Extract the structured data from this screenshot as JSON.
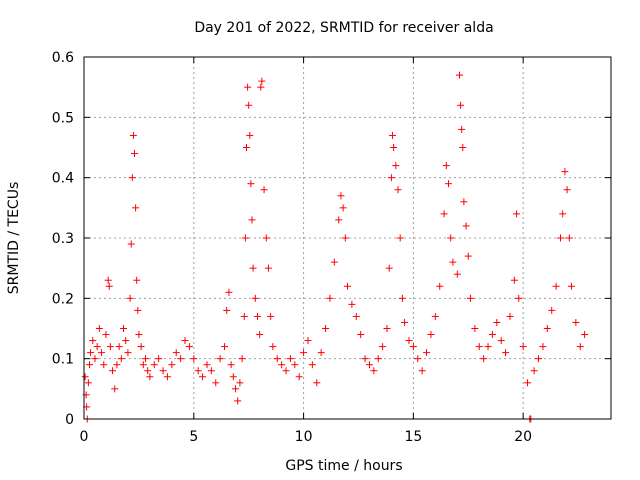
{
  "chart_data": {
    "type": "scatter",
    "title": "Day 201 of 2022, SRMTID for receiver alda",
    "xlabel": "GPS time / hours",
    "ylabel": "SRMTID / TECUs",
    "xlim": [
      0,
      24
    ],
    "ylim": [
      0,
      0.6
    ],
    "x_ticks": [
      0,
      5,
      10,
      15,
      20
    ],
    "x_tick_labels": [
      "0",
      "5",
      "10",
      "15",
      "20"
    ],
    "y_ticks": [
      0,
      0.1,
      0.2,
      0.3,
      0.4,
      0.5,
      0.6
    ],
    "y_tick_labels": [
      "0",
      "0.1",
      "0.2",
      "0.3",
      "0.4",
      "0.5",
      "0.6"
    ],
    "grid": true,
    "marker": "+",
    "color": "#ff0000",
    "series": [
      {
        "name": "SRMTID",
        "points": [
          [
            0.05,
            0.07
          ],
          [
            0.1,
            0.04
          ],
          [
            0.12,
            0.02
          ],
          [
            0.15,
            0.0
          ],
          [
            0.2,
            0.06
          ],
          [
            0.25,
            0.09
          ],
          [
            0.3,
            0.11
          ],
          [
            0.4,
            0.13
          ],
          [
            0.5,
            0.1
          ],
          [
            0.6,
            0.12
          ],
          [
            0.7,
            0.15
          ],
          [
            0.8,
            0.11
          ],
          [
            0.9,
            0.09
          ],
          [
            1.0,
            0.14
          ],
          [
            1.1,
            0.23
          ],
          [
            1.15,
            0.22
          ],
          [
            1.2,
            0.12
          ],
          [
            1.3,
            0.08
          ],
          [
            1.4,
            0.05
          ],
          [
            1.5,
            0.09
          ],
          [
            1.6,
            0.12
          ],
          [
            1.7,
            0.1
          ],
          [
            1.8,
            0.15
          ],
          [
            1.9,
            0.13
          ],
          [
            2.0,
            0.11
          ],
          [
            2.1,
            0.2
          ],
          [
            2.15,
            0.29
          ],
          [
            2.2,
            0.4
          ],
          [
            2.25,
            0.47
          ],
          [
            2.3,
            0.44
          ],
          [
            2.35,
            0.35
          ],
          [
            2.4,
            0.23
          ],
          [
            2.45,
            0.18
          ],
          [
            2.5,
            0.14
          ],
          [
            2.6,
            0.12
          ],
          [
            2.7,
            0.09
          ],
          [
            2.8,
            0.1
          ],
          [
            2.9,
            0.08
          ],
          [
            3.0,
            0.07
          ],
          [
            3.2,
            0.09
          ],
          [
            3.4,
            0.1
          ],
          [
            3.6,
            0.08
          ],
          [
            3.8,
            0.07
          ],
          [
            4.0,
            0.09
          ],
          [
            4.2,
            0.11
          ],
          [
            4.4,
            0.1
          ],
          [
            4.6,
            0.13
          ],
          [
            4.8,
            0.12
          ],
          [
            5.0,
            0.1
          ],
          [
            5.2,
            0.08
          ],
          [
            5.4,
            0.07
          ],
          [
            5.6,
            0.09
          ],
          [
            5.8,
            0.08
          ],
          [
            6.0,
            0.06
          ],
          [
            6.2,
            0.1
          ],
          [
            6.4,
            0.12
          ],
          [
            6.5,
            0.18
          ],
          [
            6.6,
            0.21
          ],
          [
            6.7,
            0.09
          ],
          [
            6.8,
            0.07
          ],
          [
            6.9,
            0.05
          ],
          [
            7.0,
            0.03
          ],
          [
            7.1,
            0.06
          ],
          [
            7.2,
            0.1
          ],
          [
            7.3,
            0.17
          ],
          [
            7.35,
            0.3
          ],
          [
            7.4,
            0.45
          ],
          [
            7.45,
            0.55
          ],
          [
            7.5,
            0.52
          ],
          [
            7.55,
            0.47
          ],
          [
            7.6,
            0.39
          ],
          [
            7.65,
            0.33
          ],
          [
            7.7,
            0.25
          ],
          [
            7.8,
            0.2
          ],
          [
            7.9,
            0.17
          ],
          [
            8.0,
            0.14
          ],
          [
            8.05,
            0.55
          ],
          [
            8.1,
            0.56
          ],
          [
            8.2,
            0.38
          ],
          [
            8.3,
            0.3
          ],
          [
            8.4,
            0.25
          ],
          [
            8.5,
            0.17
          ],
          [
            8.6,
            0.12
          ],
          [
            8.8,
            0.1
          ],
          [
            9.0,
            0.09
          ],
          [
            9.2,
            0.08
          ],
          [
            9.4,
            0.1
          ],
          [
            9.6,
            0.09
          ],
          [
            9.8,
            0.07
          ],
          [
            10.0,
            0.11
          ],
          [
            10.2,
            0.13
          ],
          [
            10.4,
            0.09
          ],
          [
            10.6,
            0.06
          ],
          [
            10.8,
            0.11
          ],
          [
            11.0,
            0.15
          ],
          [
            11.2,
            0.2
          ],
          [
            11.4,
            0.26
          ],
          [
            11.6,
            0.33
          ],
          [
            11.7,
            0.37
          ],
          [
            11.8,
            0.35
          ],
          [
            11.9,
            0.3
          ],
          [
            12.0,
            0.22
          ],
          [
            12.2,
            0.19
          ],
          [
            12.4,
            0.17
          ],
          [
            12.6,
            0.14
          ],
          [
            12.8,
            0.1
          ],
          [
            13.0,
            0.09
          ],
          [
            13.2,
            0.08
          ],
          [
            13.4,
            0.1
          ],
          [
            13.6,
            0.12
          ],
          [
            13.8,
            0.15
          ],
          [
            13.9,
            0.25
          ],
          [
            14.0,
            0.4
          ],
          [
            14.05,
            0.47
          ],
          [
            14.1,
            0.45
          ],
          [
            14.2,
            0.42
          ],
          [
            14.3,
            0.38
          ],
          [
            14.4,
            0.3
          ],
          [
            14.5,
            0.2
          ],
          [
            14.6,
            0.16
          ],
          [
            14.8,
            0.13
          ],
          [
            15.0,
            0.12
          ],
          [
            15.2,
            0.1
          ],
          [
            15.4,
            0.08
          ],
          [
            15.6,
            0.11
          ],
          [
            15.8,
            0.14
          ],
          [
            16.0,
            0.17
          ],
          [
            16.2,
            0.22
          ],
          [
            16.4,
            0.34
          ],
          [
            16.5,
            0.42
          ],
          [
            16.6,
            0.39
          ],
          [
            16.7,
            0.3
          ],
          [
            16.8,
            0.26
          ],
          [
            17.0,
            0.24
          ],
          [
            17.1,
            0.57
          ],
          [
            17.15,
            0.52
          ],
          [
            17.2,
            0.48
          ],
          [
            17.25,
            0.45
          ],
          [
            17.3,
            0.36
          ],
          [
            17.4,
            0.32
          ],
          [
            17.5,
            0.27
          ],
          [
            17.6,
            0.2
          ],
          [
            17.8,
            0.15
          ],
          [
            18.0,
            0.12
          ],
          [
            18.2,
            0.1
          ],
          [
            18.4,
            0.12
          ],
          [
            18.6,
            0.14
          ],
          [
            18.8,
            0.16
          ],
          [
            19.0,
            0.13
          ],
          [
            19.2,
            0.11
          ],
          [
            19.4,
            0.17
          ],
          [
            19.6,
            0.23
          ],
          [
            19.7,
            0.34
          ],
          [
            19.8,
            0.2
          ],
          [
            20.0,
            0.12
          ],
          [
            20.2,
            0.06
          ],
          [
            20.3,
            0.0
          ],
          [
            20.35,
            0.0
          ],
          [
            20.5,
            0.08
          ],
          [
            20.7,
            0.1
          ],
          [
            20.9,
            0.12
          ],
          [
            21.1,
            0.15
          ],
          [
            21.3,
            0.18
          ],
          [
            21.5,
            0.22
          ],
          [
            21.7,
            0.3
          ],
          [
            21.8,
            0.34
          ],
          [
            21.9,
            0.41
          ],
          [
            22.0,
            0.38
          ],
          [
            22.1,
            0.3
          ],
          [
            22.2,
            0.22
          ],
          [
            22.4,
            0.16
          ],
          [
            22.6,
            0.12
          ],
          [
            22.8,
            0.14
          ]
        ]
      }
    ]
  }
}
